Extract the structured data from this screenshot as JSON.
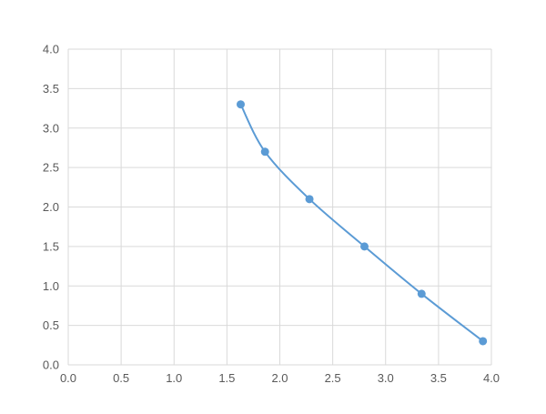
{
  "chart_data": {
    "type": "scatter",
    "title": "",
    "xlabel": "",
    "ylabel": "",
    "xlim": [
      0,
      4.0
    ],
    "ylim": [
      0,
      4.0
    ],
    "xticks": [
      "0.0",
      "0.5",
      "1.0",
      "1.5",
      "2.0",
      "2.5",
      "3.0",
      "3.5",
      "4.0"
    ],
    "yticks": [
      "0.0",
      "0.5",
      "1.0",
      "1.5",
      "2.0",
      "2.5",
      "3.0",
      "3.5",
      "4.0"
    ],
    "grid": true,
    "smooth_line": true,
    "series": [
      {
        "color": "#5b9bd5",
        "x": [
          1.63,
          1.86,
          2.28,
          2.8,
          3.34,
          3.92
        ],
        "y": [
          3.3,
          2.7,
          2.1,
          1.5,
          0.9,
          0.3
        ]
      }
    ]
  }
}
